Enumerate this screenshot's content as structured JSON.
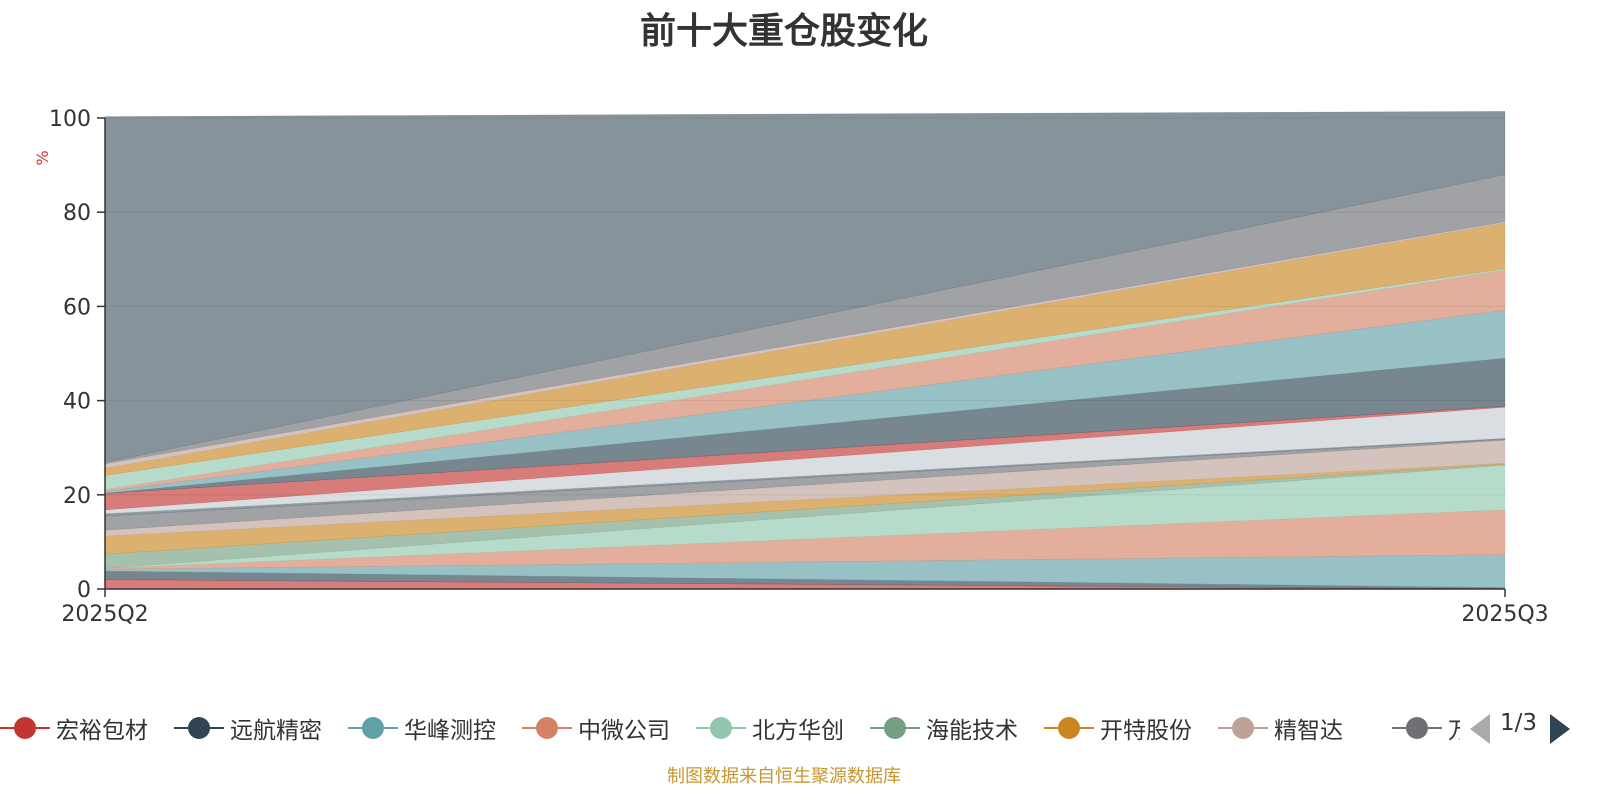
{
  "chart_data": {
    "type": "area",
    "title": "前十大重仓股变化",
    "ylabel": "%",
    "xlabel": "",
    "categories": [
      "2025Q2",
      "2025Q3"
    ],
    "ylim": [
      0,
      100
    ],
    "yticks": [
      0,
      20,
      40,
      60,
      80,
      100
    ],
    "grid": true,
    "series": [
      {
        "name": "layer-1",
        "color": "#c23531",
        "opacity": 0.65,
        "values": [
          2.0,
          0.0
        ]
      },
      {
        "name": "layer-2",
        "color": "#2f4554",
        "opacity": 0.65,
        "values": [
          1.8,
          0.3
        ]
      },
      {
        "name": "layer-3",
        "color": "#61a0a8",
        "opacity": 0.65,
        "values": [
          0.4,
          7.0
        ]
      },
      {
        "name": "layer-4",
        "color": "#d48265",
        "opacity": 0.65,
        "values": [
          0.2,
          9.5
        ]
      },
      {
        "name": "layer-5",
        "color": "#91c7ae",
        "opacity": 0.65,
        "values": [
          0.0,
          9.5
        ]
      },
      {
        "name": "layer-6",
        "color": "#749f83",
        "opacity": 0.65,
        "values": [
          3.0,
          0.2
        ]
      },
      {
        "name": "layer-7",
        "color": "#ca8622",
        "opacity": 0.65,
        "values": [
          3.8,
          0.2
        ]
      },
      {
        "name": "layer-8",
        "color": "#bda29a",
        "opacity": 0.65,
        "values": [
          1.3,
          4.9
        ]
      },
      {
        "name": "layer-9",
        "color": "#6e7074",
        "opacity": 0.65,
        "values": [
          3.0,
          0.2
        ]
      },
      {
        "name": "layer-10",
        "color": "#546570",
        "opacity": 0.65,
        "values": [
          0.5,
          0.2
        ]
      },
      {
        "name": "layer-11",
        "color": "#c4ccd3",
        "opacity": 0.65,
        "values": [
          0.8,
          6.6
        ]
      },
      {
        "name": "layer-12",
        "color": "#c23531",
        "opacity": 0.65,
        "values": [
          3.5,
          0.2
        ]
      },
      {
        "name": "layer-13",
        "color": "#2f4554",
        "opacity": 0.65,
        "values": [
          0.0,
          10.2
        ]
      },
      {
        "name": "layer-14",
        "color": "#61a0a8",
        "opacity": 0.65,
        "values": [
          0.4,
          10.2
        ]
      },
      {
        "name": "layer-15",
        "color": "#d48265",
        "opacity": 0.65,
        "values": [
          0.4,
          8.5
        ]
      },
      {
        "name": "layer-16",
        "color": "#91c7ae",
        "opacity": 0.65,
        "values": [
          3.0,
          0.3
        ]
      },
      {
        "name": "layer-17",
        "color": "#ca8622",
        "opacity": 0.65,
        "values": [
          1.5,
          9.7
        ]
      },
      {
        "name": "layer-18",
        "color": "#bda29a",
        "opacity": 0.65,
        "values": [
          1.0,
          0.3
        ]
      },
      {
        "name": "layer-19",
        "color": "#6e7074",
        "opacity": 0.65,
        "values": [
          0.3,
          10.0
        ]
      },
      {
        "name": "layer-20",
        "color": "#546570",
        "opacity": 0.7,
        "values": [
          73.4,
          13.4
        ]
      }
    ],
    "legend": {
      "items": [
        {
          "name": "宏裕包材",
          "color": "#c23531"
        },
        {
          "name": "远航精密",
          "color": "#2f4554"
        },
        {
          "name": "华峰测控",
          "color": "#61a0a8"
        },
        {
          "name": "中微公司",
          "color": "#d48265"
        },
        {
          "name": "北方华创",
          "color": "#91c7ae"
        },
        {
          "name": "海能技术",
          "color": "#749f83"
        },
        {
          "name": "开特股份",
          "color": "#ca8622"
        },
        {
          "name": "精智达",
          "color": "#bda29a"
        },
        {
          "name": "万通",
          "color": "#6e7074"
        }
      ],
      "page": "1/3"
    }
  },
  "footer": {
    "source": "制图数据来自恒生聚源数据库"
  }
}
